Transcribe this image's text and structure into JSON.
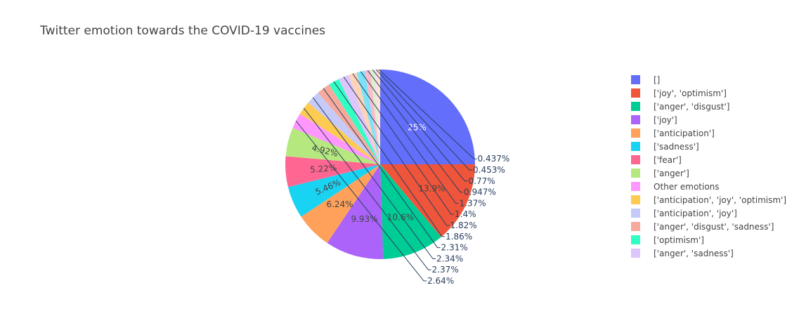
{
  "chart_data": {
    "type": "pie",
    "title": "Twitter emotion towards the COVID-19 vaccines",
    "slices": [
      {
        "label": "[]",
        "percent_text": "25%",
        "value": 25.0,
        "color": "#636efa"
      },
      {
        "label": "['joy', 'optimism']",
        "percent_text": "13.9%",
        "value": 13.9,
        "color": "#ef553b"
      },
      {
        "label": "['anger', 'disgust']",
        "percent_text": "10.6%",
        "value": 10.6,
        "color": "#00cc96"
      },
      {
        "label": "['joy']",
        "percent_text": "9.93%",
        "value": 9.93,
        "color": "#ab63fa"
      },
      {
        "label": "['anticipation']",
        "percent_text": "6.24%",
        "value": 6.24,
        "color": "#ffa15a"
      },
      {
        "label": "['sadness']",
        "percent_text": "5.46%",
        "value": 5.46,
        "color": "#19d3f3"
      },
      {
        "label": "['fear']",
        "percent_text": "5.22%",
        "value": 5.22,
        "color": "#ff6692"
      },
      {
        "label": "['anger']",
        "percent_text": "4.92%",
        "value": 4.92,
        "color": "#b6e880"
      },
      {
        "label": "Other emotions",
        "percent_text": "2.64%",
        "value": 2.64,
        "color": "#ff97ff"
      },
      {
        "label": "['anticipation', 'joy', 'optimism']",
        "percent_text": "2.37%",
        "value": 2.37,
        "color": "#fecb52"
      },
      {
        "label": "['anticipation', 'joy']",
        "percent_text": "2.34%",
        "value": 2.34,
        "color": "#c6caf8"
      },
      {
        "label": "['anger', 'disgust', 'sadness']",
        "percent_text": "2.31%",
        "value": 2.31,
        "color": "#f5aa9d"
      },
      {
        "label": "['optimism']",
        "percent_text": "1.86%",
        "value": 1.86,
        "color": "#33ffc4"
      },
      {
        "label": "['anger', 'sadness']",
        "percent_text": "1.82%",
        "value": 1.82,
        "color": "#dcc6fb"
      },
      {
        "percent_text": "1.4%",
        "value": 1.4,
        "color": "#fed3b7"
      },
      {
        "percent_text": "1.37%",
        "value": 1.37,
        "color": "#7ae3f8"
      },
      {
        "percent_text": "0.947%",
        "value": 0.947,
        "color": "#ffb8cc"
      },
      {
        "percent_text": "0.77%",
        "value": 0.77,
        "color": "#dbf0c6"
      },
      {
        "percent_text": "0.453%",
        "value": 0.453,
        "color": "#ffd8ff"
      },
      {
        "percent_text": "0.437%",
        "value": 0.437,
        "color": "#ffeaa9"
      }
    ]
  }
}
